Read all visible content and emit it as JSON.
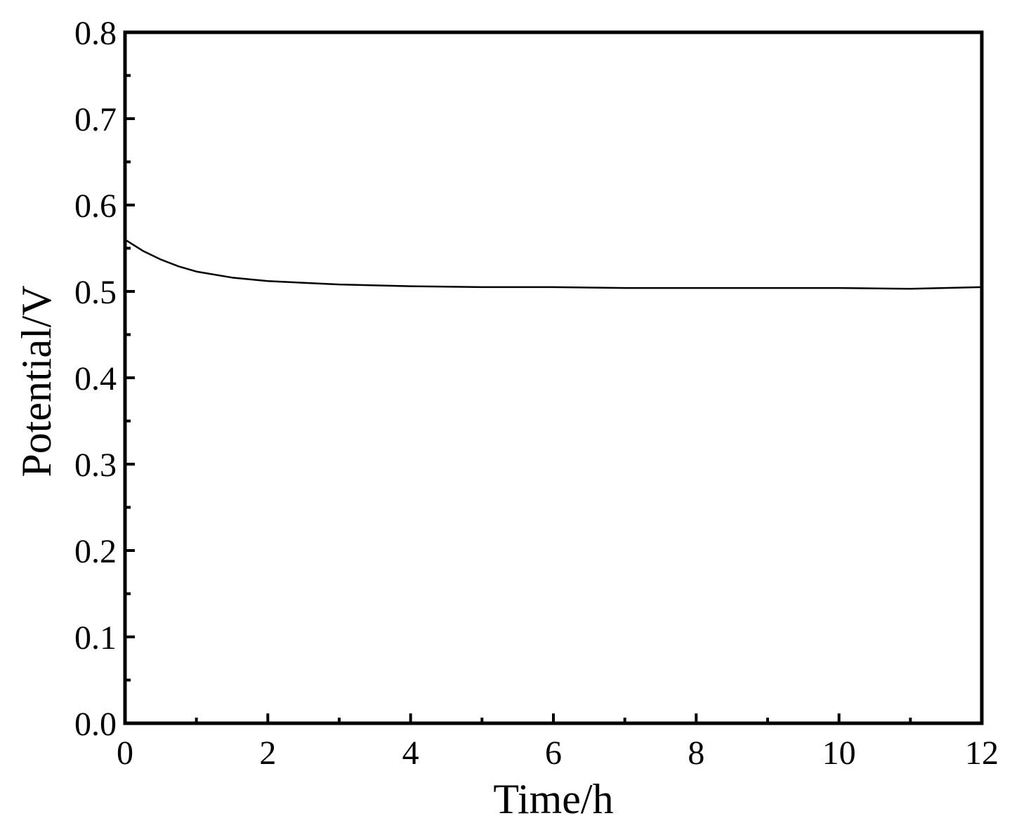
{
  "chart_data": {
    "type": "line",
    "title": "",
    "xlabel": "Time/h",
    "ylabel": "Potential/V",
    "xlim": [
      0,
      12
    ],
    "ylim": [
      0.0,
      0.8
    ],
    "grid": false,
    "legend": "none",
    "x_ticks": [
      "0",
      "2",
      "4",
      "6",
      "8",
      "10",
      "12"
    ],
    "y_ticks": [
      "0.0",
      "0.1",
      "0.2",
      "0.3",
      "0.4",
      "0.5",
      "0.6",
      "0.7",
      "0.8"
    ],
    "line_color": "#000000",
    "series": [
      {
        "x": [
          0,
          0.25,
          0.5,
          0.75,
          1.0,
          1.5,
          2.0,
          2.5,
          3.0,
          4.0,
          5.0,
          6.0,
          7.0,
          8.0,
          9.0,
          10.0,
          11.0,
          12.0
        ],
        "y": [
          0.56,
          0.547,
          0.537,
          0.529,
          0.523,
          0.516,
          0.512,
          0.51,
          0.508,
          0.506,
          0.505,
          0.505,
          0.504,
          0.504,
          0.504,
          0.504,
          0.503,
          0.505
        ]
      }
    ]
  }
}
